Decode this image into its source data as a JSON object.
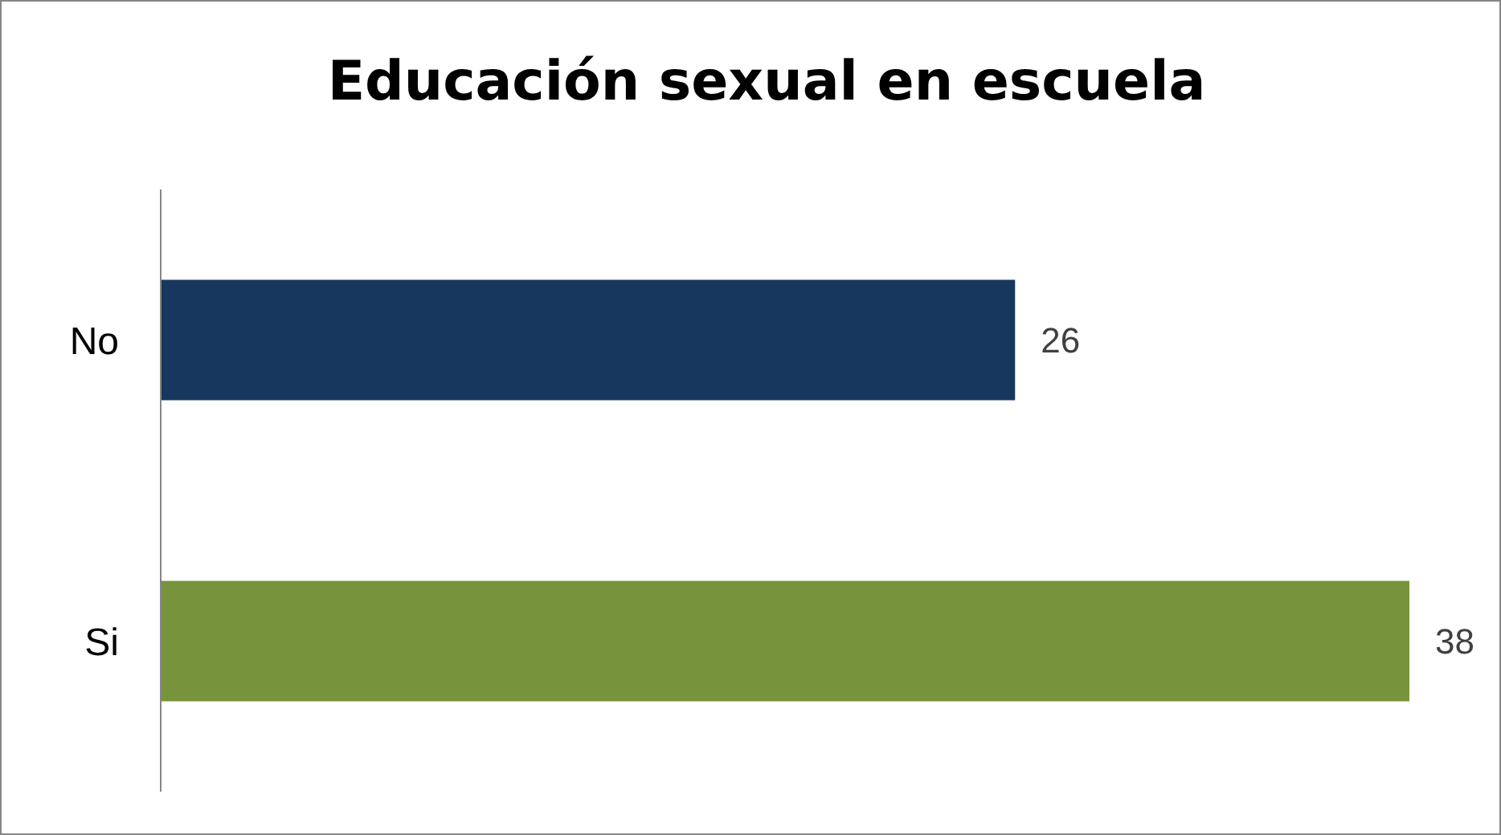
{
  "chart_data": {
    "type": "bar",
    "orientation": "horizontal",
    "title": "Educación sexual en escuela",
    "categories": [
      "No",
      "Si"
    ],
    "values": [
      26,
      38
    ],
    "colors": [
      "#17375e",
      "#77933c"
    ],
    "data_labels": true,
    "grid": false,
    "legend": false
  }
}
